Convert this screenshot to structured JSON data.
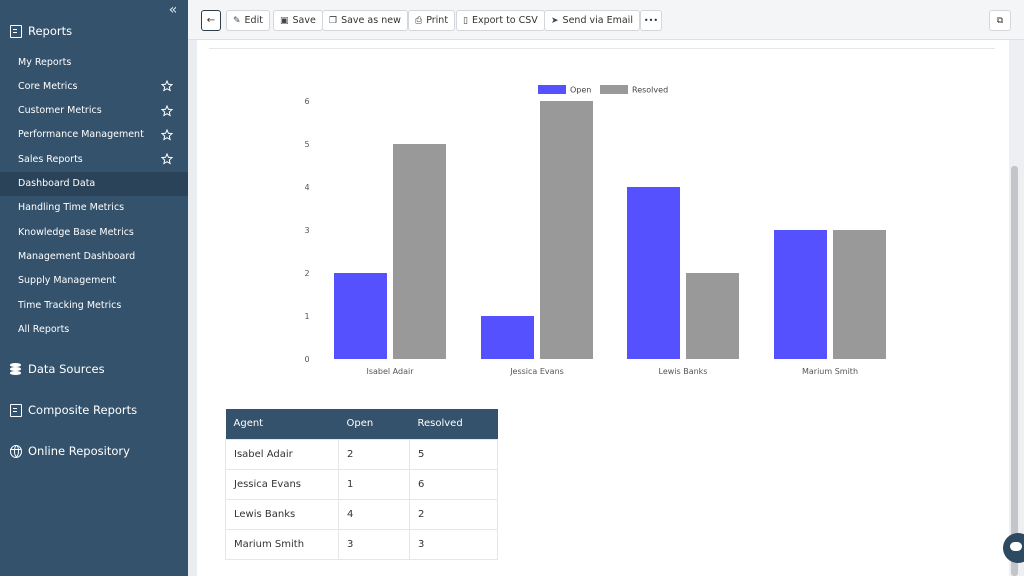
{
  "sidebar": {
    "collapse_icon": "double-chevron-left-icon",
    "reports_heading": "Reports",
    "items": [
      {
        "label": "My Reports",
        "starred": false
      },
      {
        "label": "Core Metrics",
        "starred": true
      },
      {
        "label": "Customer Metrics",
        "starred": true
      },
      {
        "label": "Performance Management",
        "starred": true
      },
      {
        "label": "Sales Reports",
        "starred": true
      },
      {
        "label": "Dashboard Data",
        "starred": false,
        "active": true
      },
      {
        "label": "Handling Time Metrics",
        "starred": false
      },
      {
        "label": "Knowledge Base Metrics",
        "starred": false
      },
      {
        "label": "Management Dashboard",
        "starred": false
      },
      {
        "label": "Supply Management",
        "starred": false
      },
      {
        "label": "Time Tracking Metrics",
        "starred": false
      },
      {
        "label": "All Reports",
        "starred": false
      }
    ],
    "data_sources": "Data Sources",
    "composite_reports": "Composite Reports",
    "online_repository": "Online Repository"
  },
  "toolbar": {
    "edit": "Edit",
    "save": "Save",
    "save_as_new": "Save as new",
    "print": "Print",
    "export_csv": "Export to CSV",
    "send_email": "Send via Email",
    "more": "•••"
  },
  "colors": {
    "sidebar": "#34526b",
    "open": "#5551ff",
    "resolved": "#999999"
  },
  "chart_data": {
    "type": "bar",
    "categories": [
      "Isabel Adair",
      "Jessica Evans",
      "Lewis Banks",
      "Marium Smith"
    ],
    "series": [
      {
        "name": "Open",
        "values": [
          2,
          1,
          4,
          3
        ],
        "color": "#5551ff"
      },
      {
        "name": "Resolved",
        "values": [
          5,
          6,
          2,
          3
        ],
        "color": "#999999"
      }
    ],
    "ylim": [
      0,
      6
    ],
    "yticks": [
      0,
      1,
      2,
      3,
      4,
      5,
      6
    ],
    "legend": "top-center",
    "grid": false
  },
  "table": {
    "headers": [
      "Agent",
      "Open",
      "Resolved"
    ],
    "rows": [
      [
        "Isabel Adair",
        "2",
        "5"
      ],
      [
        "Jessica Evans",
        "1",
        "6"
      ],
      [
        "Lewis Banks",
        "4",
        "2"
      ],
      [
        "Marium Smith",
        "3",
        "3"
      ]
    ]
  }
}
